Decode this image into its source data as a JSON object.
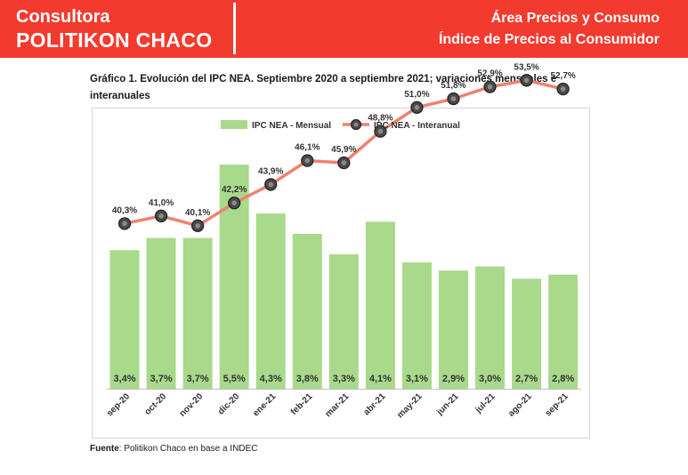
{
  "header": {
    "brand_line1": "Consultora",
    "brand_line2": "POLITIKON CHACO",
    "area_line1": "Área Precios y Consumo",
    "area_line2": "Índice de Precios al Consumidor",
    "background_color": "#f23a2e"
  },
  "chart_title": "Gráfico 1. Evolución del IPC NEA. Septiembre 2020 a septiembre 2021; variaciones mensuales e interanuales",
  "footer": {
    "label": "Fuente",
    "text": ": Politikon Chaco en base a INDEC"
  },
  "chart_data": {
    "type": "bar",
    "categories": [
      "sep-20",
      "oct-20",
      "nov-20",
      "dic-20",
      "ene-21",
      "feb-21",
      "mar-21",
      "abr-21",
      "may-21",
      "jun-21",
      "jul-21",
      "ago-21",
      "sep-21"
    ],
    "series": [
      {
        "name": "IPC NEA - Mensual",
        "type": "bar",
        "axis": "primary",
        "color": "#a9d98b",
        "values": [
          3.4,
          3.7,
          3.7,
          5.5,
          4.3,
          3.8,
          3.3,
          4.1,
          3.1,
          2.9,
          3.0,
          2.7,
          2.8
        ],
        "labels": [
          "3,4%",
          "3,7%",
          "3,7%",
          "5,5%",
          "4,3%",
          "3,8%",
          "3,3%",
          "4,1%",
          "3,1%",
          "2,9%",
          "3,0%",
          "2,7%",
          "2,8%"
        ]
      },
      {
        "name": "IPC NEA - Interanual",
        "type": "line",
        "axis": "secondary",
        "color": "#f0826e",
        "marker_color": "#404040",
        "values": [
          40.3,
          41.0,
          40.1,
          42.2,
          43.9,
          46.1,
          45.9,
          48.8,
          51.0,
          51.8,
          52.9,
          53.5,
          52.7
        ],
        "labels": [
          "40,3%",
          "41,0%",
          "40,1%",
          "42,2%",
          "43,9%",
          "46,1%",
          "45,9%",
          "48,8%",
          "51,0%",
          "51,8%",
          "52,9%",
          "53,5%",
          "52,7%"
        ]
      }
    ],
    "y_primary_range": [
      0,
      6
    ],
    "y_secondary_range": [
      20,
      60
    ],
    "legend_position": "top",
    "grid": false,
    "axes_visible": false
  }
}
